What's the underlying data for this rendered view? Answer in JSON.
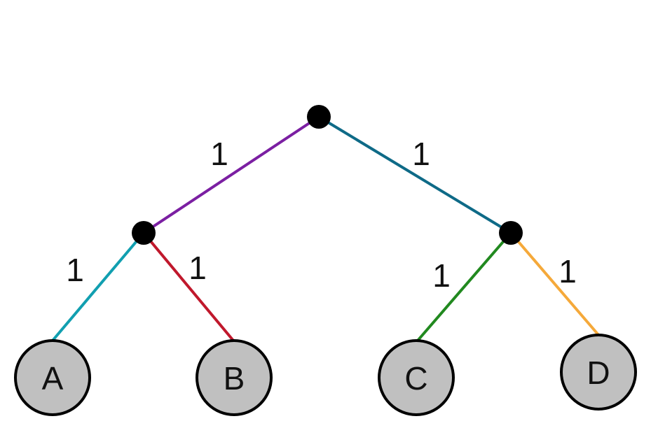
{
  "edges": [
    {
      "id": "root-left",
      "weight": "1",
      "color": "#7b1fa2"
    },
    {
      "id": "root-right",
      "weight": "1",
      "color": "#0e6a87"
    },
    {
      "id": "left-a",
      "weight": "1",
      "color": "#119fb0"
    },
    {
      "id": "left-b",
      "weight": "1",
      "color": "#c0182c"
    },
    {
      "id": "right-c",
      "weight": "1",
      "color": "#21891f"
    },
    {
      "id": "right-d",
      "weight": "1",
      "color": "#f5a93a"
    }
  ],
  "leaves": [
    {
      "id": "A",
      "label": "A"
    },
    {
      "id": "B",
      "label": "B"
    },
    {
      "id": "C",
      "label": "C"
    },
    {
      "id": "D",
      "label": "D"
    }
  ],
  "style": {
    "internal_node_color": "#000000",
    "leaf_fill": "#c0c0c0",
    "leaf_stroke": "#000000"
  }
}
